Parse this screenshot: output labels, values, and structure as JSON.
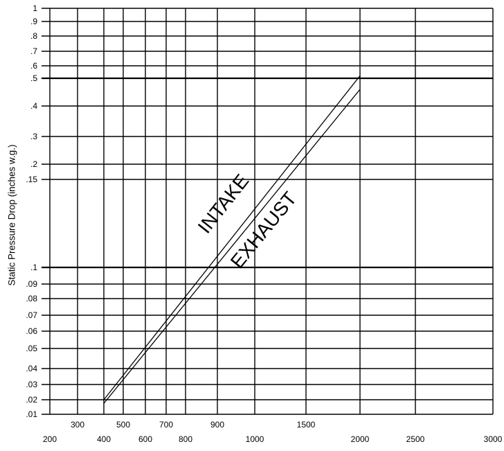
{
  "chart_data": {
    "type": "line",
    "title": "",
    "xlabel": "",
    "ylabel": "Static Pressure Drop (inches w.g.)",
    "x_ticks_bottom": [
      "200",
      "400",
      "600",
      "800",
      "1000",
      "2000",
      "2500",
      "3000"
    ],
    "x_ticks_top": [
      "300",
      "500",
      "700",
      "900",
      "1500"
    ],
    "y_ticks": [
      ".01",
      ".02",
      ".03",
      ".04",
      ".05",
      ".06",
      ".07",
      ".08",
      ".09",
      ".1",
      ".15",
      ".2",
      ".3",
      ".4",
      ".5",
      ".6",
      ".7",
      ".8",
      ".9",
      "1"
    ],
    "x_gridlines": [
      200,
      300,
      400,
      500,
      600,
      700,
      800,
      900,
      1000,
      1500,
      2000,
      2500,
      3000
    ],
    "y_gridlines": [
      0.01,
      0.02,
      0.03,
      0.04,
      0.05,
      0.06,
      0.07,
      0.08,
      0.09,
      0.1,
      0.15,
      0.2,
      0.3,
      0.4,
      0.5,
      0.6,
      0.7,
      0.8,
      0.9,
      1
    ],
    "grid": true,
    "series": [
      {
        "name": "INTAKE",
        "x": [
          400,
          2000
        ],
        "y": [
          0.02,
          0.52
        ]
      },
      {
        "name": "EXHAUST",
        "x": [
          400,
          2000
        ],
        "y": [
          0.0175,
          0.46
        ]
      }
    ]
  }
}
